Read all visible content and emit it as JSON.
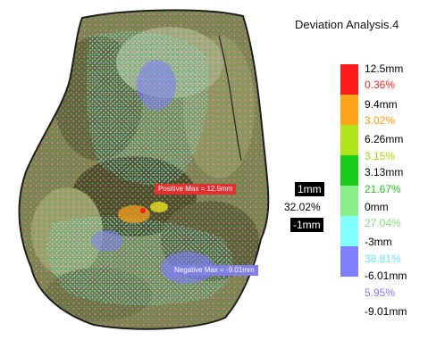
{
  "title": "Deviation Analysis.4",
  "legend": {
    "colors": [
      "#ff1a1a",
      "#ffa31a",
      "#aee61a",
      "#1acc1a",
      "#88ee88",
      "#80ffff",
      "#8080ff",
      "#ffffff"
    ],
    "values": [
      "12.5mm",
      "9.4mm",
      "6.26mm",
      "3.13mm",
      "0mm",
      "-3mm",
      "-6.01mm",
      "-9.01mm"
    ],
    "percentages": [
      {
        "text": "0.36%",
        "color": "#ff2020"
      },
      {
        "text": "3.02%",
        "color": "#ff9900"
      },
      {
        "text": "3.15%",
        "color": "#a8d800"
      },
      {
        "text": "21.67%",
        "color": "#1cc81c"
      },
      {
        "text": "27.04%",
        "color": "#7ee07e"
      },
      {
        "text": "38.81%",
        "color": "#66e6f2"
      },
      {
        "text": "5.95%",
        "color": "#7b7bff"
      }
    ]
  },
  "tolerance": {
    "upper": "1mm",
    "percentage": "32.02%",
    "lower": "-1mm"
  },
  "annotations": {
    "positive_max": "Positive Max = 12.5mm",
    "negative_max": "Negative Max = -9.01mm"
  }
}
